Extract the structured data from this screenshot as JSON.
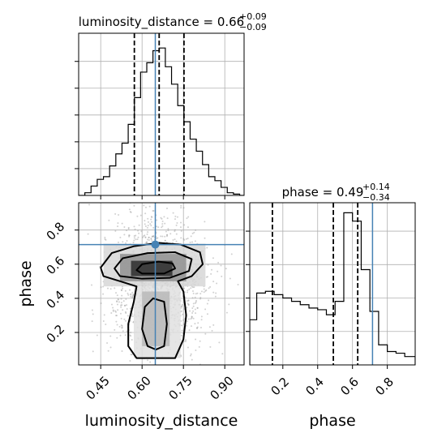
{
  "chart_data": {
    "type": "corner",
    "parameters": [
      "luminosity_distance",
      "phase"
    ],
    "truths": {
      "luminosity_distance": 0.648,
      "phase": 0.715
    },
    "panels": [
      {
        "id": "luminosity_distance-hist",
        "type": "histogram",
        "title_name": "luminosity_distance",
        "title_value": "0.66",
        "title_plus": "+0.09",
        "title_minus": "−0.09",
        "xlim": [
          0.37,
          0.97
        ],
        "bin_edges": [
          0.37,
          0.3925,
          0.4149,
          0.4374,
          0.4599,
          0.4823,
          0.5048,
          0.5272,
          0.5497,
          0.5722,
          0.5946,
          0.6171,
          0.6395,
          0.662,
          0.6844,
          0.7069,
          0.7294,
          0.7518,
          0.7743,
          0.7967,
          0.8192,
          0.8417,
          0.8641,
          0.8866,
          0.909,
          0.9315,
          0.954,
          0.97
        ],
        "counts": [
          0,
          2,
          7,
          12,
          14,
          22,
          31,
          39,
          53,
          73,
          92,
          99,
          108,
          110,
          96,
          83,
          67,
          55,
          42,
          33,
          23,
          14,
          11,
          6,
          2,
          1,
          0
        ],
        "ylim": [
          0,
          121
        ],
        "quantiles": [
          0.572,
          0.662,
          0.752
        ],
        "xticks": [
          0.45,
          0.6,
          0.75,
          0.9
        ],
        "yticks": [
          20,
          40,
          60,
          80,
          100
        ]
      },
      {
        "id": "phase-vs-luminosity_distance",
        "type": "2d-density",
        "xlabel": "luminosity_distance",
        "ylabel": "phase",
        "xlim": [
          0.37,
          0.97
        ],
        "ylim": [
          0.01,
          0.96
        ],
        "xticks": [
          0.45,
          0.6,
          0.75,
          0.9
        ],
        "xtick_labels": [
          "0.45",
          "0.60",
          "0.75",
          "0.90"
        ],
        "yticks": [
          0.2,
          0.4,
          0.6,
          0.8
        ],
        "ytick_labels": [
          "0.2",
          "0.4",
          "0.6",
          "0.8"
        ],
        "point_cloud": {
          "center": [
            0.66,
            0.49
          ],
          "spread": [
            0.09,
            0.2
          ]
        },
        "density_cells": [
          {
            "x": [
              0.56,
              0.71
            ],
            "y": [
              0.53,
              0.62
            ],
            "shade": 0.95
          },
          {
            "x": [
              0.52,
              0.76
            ],
            "y": [
              0.5,
              0.66
            ],
            "shade": 0.5
          },
          {
            "x": [
              0.46,
              0.83
            ],
            "y": [
              0.47,
              0.72
            ],
            "shade": 0.18
          },
          {
            "x": [
              0.6,
              0.7
            ],
            "y": [
              0.12,
              0.44
            ],
            "shade": 0.32
          },
          {
            "x": [
              0.57,
              0.74
            ],
            "y": [
              0.05,
              0.47
            ],
            "shade": 0.14
          }
        ],
        "contours": [
          [
            [
              0.58,
              0.565
            ],
            [
              0.6,
              0.6
            ],
            [
              0.66,
              0.615
            ],
            [
              0.71,
              0.605
            ],
            [
              0.72,
              0.575
            ],
            [
              0.68,
              0.545
            ],
            [
              0.6,
              0.545
            ]
          ],
          [
            [
              0.5,
              0.575
            ],
            [
              0.53,
              0.635
            ],
            [
              0.62,
              0.665
            ],
            [
              0.72,
              0.67
            ],
            [
              0.78,
              0.63
            ],
            [
              0.77,
              0.56
            ],
            [
              0.7,
              0.52
            ],
            [
              0.6,
              0.515
            ],
            [
              0.52,
              0.53
            ]
          ],
          [
            [
              0.45,
              0.58
            ],
            [
              0.49,
              0.665
            ],
            [
              0.57,
              0.705
            ],
            [
              0.66,
              0.725
            ],
            [
              0.74,
              0.715
            ],
            [
              0.81,
              0.67
            ],
            [
              0.82,
              0.6
            ],
            [
              0.78,
              0.53
            ],
            [
              0.73,
              0.5
            ],
            [
              0.75,
              0.44
            ],
            [
              0.76,
              0.3
            ],
            [
              0.75,
              0.16
            ],
            [
              0.72,
              0.05
            ],
            [
              0.58,
              0.05
            ],
            [
              0.55,
              0.12
            ],
            [
              0.55,
              0.25
            ],
            [
              0.57,
              0.38
            ],
            [
              0.58,
              0.47
            ],
            [
              0.52,
              0.5
            ],
            [
              0.46,
              0.53
            ]
          ],
          [
            [
              0.62,
              0.12
            ],
            [
              0.6,
              0.22
            ],
            [
              0.61,
              0.35
            ],
            [
              0.64,
              0.4
            ],
            [
              0.68,
              0.38
            ],
            [
              0.69,
              0.25
            ],
            [
              0.68,
              0.12
            ],
            [
              0.65,
              0.1
            ]
          ]
        ]
      },
      {
        "id": "phase-hist",
        "type": "histogram",
        "title_name": "phase",
        "title_value": "0.49",
        "title_plus": "+0.14",
        "title_minus": "−0.34",
        "xlim": [
          0.01,
          0.96
        ],
        "bin_edges": [
          0.01,
          0.05,
          0.1,
          0.15,
          0.2,
          0.25,
          0.3,
          0.35,
          0.4,
          0.45,
          0.5,
          0.55,
          0.6,
          0.65,
          0.7,
          0.75,
          0.8,
          0.85,
          0.9,
          0.96
        ],
        "counts": [
          27,
          43,
          44,
          42,
          40,
          38,
          36,
          34,
          33,
          30,
          38,
          91,
          86,
          57,
          32,
          12,
          8,
          7,
          5
        ],
        "ylim": [
          0,
          97
        ],
        "quantiles": [
          0.14,
          0.49,
          0.63
        ],
        "xticks": [
          0.2,
          0.4,
          0.6,
          0.8
        ],
        "xtick_labels": [
          "0.2",
          "0.4",
          "0.6",
          "0.8"
        ],
        "yticks": [
          20,
          40,
          60,
          80
        ],
        "xlabel": "phase"
      }
    ]
  }
}
